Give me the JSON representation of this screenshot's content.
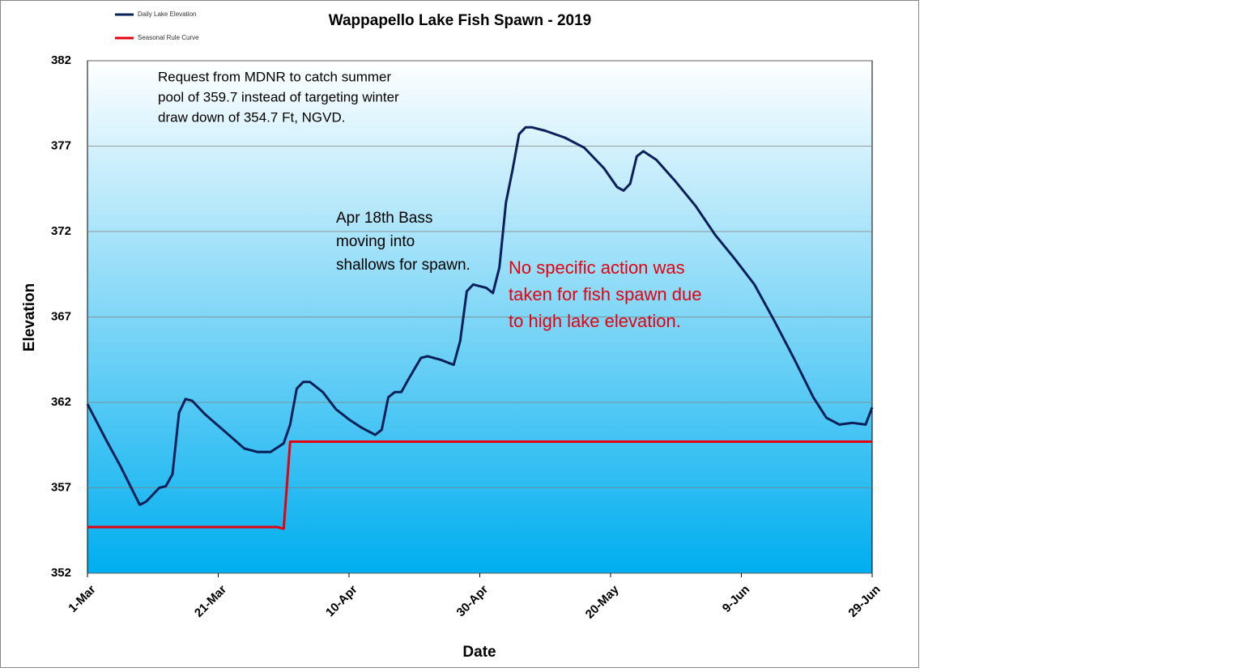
{
  "chart_data": {
    "type": "line",
    "title": "Wappapello Lake Fish Spawn - 2019",
    "x_label": "Date",
    "y_label": "Elevation",
    "xlim": [
      0,
      120
    ],
    "xticks": [
      {
        "value": 0,
        "label": "1-Mar"
      },
      {
        "value": 20,
        "label": "21-Mar"
      },
      {
        "value": 40,
        "label": "10-Apr"
      },
      {
        "value": 60,
        "label": "30-Apr"
      },
      {
        "value": 80,
        "label": "20-May"
      },
      {
        "value": 100,
        "label": "9-Jun"
      },
      {
        "value": 120,
        "label": "29-Jun"
      }
    ],
    "ylim": [
      352,
      382
    ],
    "yticks": [
      352,
      357,
      362,
      367,
      372,
      377,
      382
    ],
    "grid": true,
    "legend": "top-left",
    "series": [
      {
        "name": "Daily Lake Elevation",
        "color": "#0b2059",
        "x": [
          0,
          3,
          5,
          8,
          9,
          11,
          12,
          13,
          14,
          15,
          16,
          18,
          21,
          24,
          26,
          28,
          30,
          31,
          32,
          33,
          34,
          36,
          38,
          40,
          42,
          44,
          45,
          46,
          47,
          48,
          49,
          51,
          52,
          54,
          56,
          57,
          58,
          59,
          61,
          62,
          63,
          64,
          65,
          66,
          67,
          68,
          70,
          73,
          76,
          79,
          81,
          82,
          83,
          84,
          85,
          87,
          90,
          93,
          96,
          99,
          102,
          105,
          108,
          111,
          113,
          115,
          117,
          119,
          120
        ],
        "values": [
          361.9,
          359.7,
          358.3,
          356.0,
          356.2,
          357.0,
          357.1,
          357.8,
          361.4,
          362.2,
          362.1,
          361.3,
          360.3,
          359.3,
          359.1,
          359.1,
          359.6,
          360.7,
          362.8,
          363.2,
          363.2,
          362.6,
          361.6,
          361.0,
          360.5,
          360.1,
          360.4,
          362.3,
          362.6,
          362.6,
          363.3,
          364.6,
          364.7,
          364.5,
          364.2,
          365.6,
          368.5,
          368.9,
          368.7,
          368.4,
          369.9,
          373.7,
          375.6,
          377.7,
          378.1,
          378.1,
          377.9,
          377.5,
          376.9,
          375.7,
          374.6,
          374.4,
          374.8,
          376.4,
          376.7,
          376.2,
          374.9,
          373.5,
          371.8,
          370.4,
          368.9,
          366.8,
          364.6,
          362.3,
          361.1,
          360.7,
          360.8,
          360.7,
          361.7
        ]
      },
      {
        "name": "Seasonal Rule Curve",
        "color": "#e3000f",
        "x": [
          0,
          29,
          30,
          31,
          120
        ],
        "values": [
          354.7,
          354.7,
          354.6,
          359.7,
          359.7
        ]
      }
    ],
    "annotations": [
      {
        "text": "Request  from MDNR to catch summer",
        "color": "#000000"
      },
      {
        "text": "pool of 359.7 instead of targeting winter",
        "color": "#000000"
      },
      {
        "text": "draw down of 354.7 Ft, NGVD.",
        "color": "#000000"
      },
      {
        "text": "Apr 18th Bass",
        "color": "#000000"
      },
      {
        "text": "moving into",
        "color": "#000000"
      },
      {
        "text": "shallows for spawn.",
        "color": "#000000"
      },
      {
        "text": "No specific action was",
        "color": "#e3000f"
      },
      {
        "text": "taken for fish spawn due",
        "color": "#e3000f"
      },
      {
        "text": "to high lake elevation.",
        "color": "#e3000f"
      }
    ]
  }
}
